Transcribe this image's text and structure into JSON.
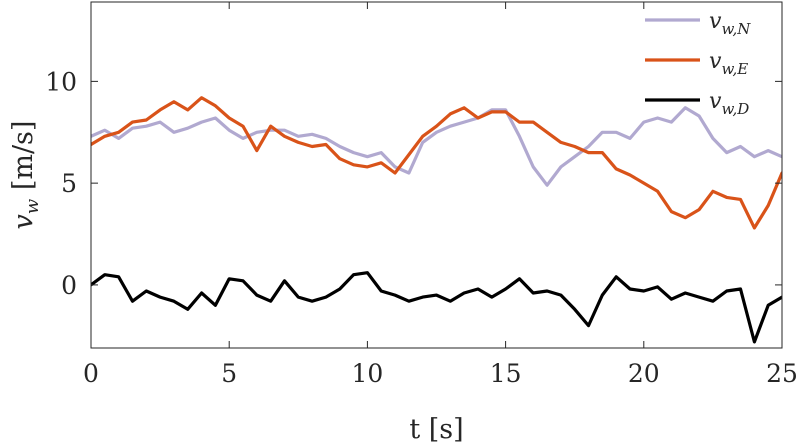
{
  "chart_data": {
    "type": "line",
    "xlabel": "t [s]",
    "ylabel_main": "v",
    "ylabel_sub": "w",
    "ylabel_unit": " [m/s]",
    "xlim": [
      0,
      25
    ],
    "ylim": [
      -3.1,
      13.9
    ],
    "xticks": [
      0,
      5,
      10,
      15,
      20,
      25
    ],
    "yticks": [
      0,
      5,
      10
    ],
    "grid": false,
    "legend_position": "top-right",
    "series": [
      {
        "name": "v_{w,N}",
        "name_main": "v",
        "name_sub": "w,N",
        "color": "#b1a9d0",
        "x": [
          0,
          0.5,
          1,
          1.5,
          2,
          2.5,
          3,
          3.5,
          4,
          4.5,
          5,
          5.5,
          6,
          6.5,
          7,
          7.5,
          8,
          8.5,
          9,
          9.5,
          10,
          10.5,
          11,
          11.5,
          12,
          12.5,
          13,
          13.5,
          14,
          14.5,
          15,
          15.5,
          16,
          16.5,
          17,
          17.5,
          18,
          18.5,
          19,
          19.5,
          20,
          20.5,
          21,
          21.5,
          22,
          22.5,
          23,
          23.5,
          24,
          24.5,
          25
        ],
        "y": [
          7.3,
          7.6,
          7.2,
          7.7,
          7.8,
          8.0,
          7.5,
          7.7,
          8.0,
          8.2,
          7.6,
          7.2,
          7.5,
          7.6,
          7.6,
          7.3,
          7.4,
          7.2,
          6.8,
          6.5,
          6.3,
          6.5,
          5.8,
          5.5,
          7.0,
          7.5,
          7.8,
          8.0,
          8.2,
          8.6,
          8.6,
          7.3,
          5.8,
          4.9,
          5.8,
          6.3,
          6.8,
          7.5,
          7.5,
          7.2,
          8.0,
          8.2,
          8.0,
          8.7,
          8.3,
          7.2,
          6.5,
          6.8,
          6.3,
          6.6,
          6.3
        ]
      },
      {
        "name": "v_{w,E}",
        "name_main": "v",
        "name_sub": "w,E",
        "color": "#d95319",
        "x": [
          0,
          0.5,
          1,
          1.5,
          2,
          2.5,
          3,
          3.5,
          4,
          4.5,
          5,
          5.5,
          6,
          6.5,
          7,
          7.5,
          8,
          8.5,
          9,
          9.5,
          10,
          10.5,
          11,
          11.5,
          12,
          12.5,
          13,
          13.5,
          14,
          14.5,
          15,
          15.5,
          16,
          16.5,
          17,
          17.5,
          18,
          18.5,
          19,
          19.5,
          20,
          20.5,
          21,
          21.5,
          22,
          22.5,
          23,
          23.5,
          24,
          24.5,
          25
        ],
        "y": [
          6.9,
          7.3,
          7.5,
          8.0,
          8.1,
          8.6,
          9.0,
          8.6,
          9.2,
          8.8,
          8.2,
          7.8,
          6.6,
          7.8,
          7.3,
          7.0,
          6.8,
          6.9,
          6.2,
          5.9,
          5.8,
          6.0,
          5.5,
          6.4,
          7.3,
          7.8,
          8.4,
          8.7,
          8.2,
          8.5,
          8.5,
          8.0,
          8.0,
          7.5,
          7.0,
          6.8,
          6.5,
          6.5,
          5.7,
          5.4,
          5.0,
          4.6,
          3.6,
          3.3,
          3.7,
          4.6,
          4.3,
          4.2,
          2.8,
          3.9,
          5.5
        ]
      },
      {
        "name": "v_{w,D}",
        "name_main": "v",
        "name_sub": "w,D",
        "color": "#000000",
        "x": [
          0,
          0.5,
          1,
          1.5,
          2,
          2.5,
          3,
          3.5,
          4,
          4.5,
          5,
          5.5,
          6,
          6.5,
          7,
          7.5,
          8,
          8.5,
          9,
          9.5,
          10,
          10.5,
          11,
          11.5,
          12,
          12.5,
          13,
          13.5,
          14,
          14.5,
          15,
          15.5,
          16,
          16.5,
          17,
          17.5,
          18,
          18.5,
          19,
          19.5,
          20,
          20.5,
          21,
          21.5,
          22,
          22.5,
          23,
          23.5,
          24,
          24.5,
          25
        ],
        "y": [
          0.0,
          0.5,
          0.4,
          -0.8,
          -0.3,
          -0.6,
          -0.8,
          -1.2,
          -0.4,
          -1.0,
          0.3,
          0.2,
          -0.5,
          -0.8,
          0.2,
          -0.6,
          -0.8,
          -0.6,
          -0.2,
          0.5,
          0.6,
          -0.3,
          -0.5,
          -0.8,
          -0.6,
          -0.5,
          -0.8,
          -0.4,
          -0.2,
          -0.6,
          -0.2,
          0.3,
          -0.4,
          -0.3,
          -0.5,
          -1.2,
          -2.0,
          -0.5,
          0.4,
          -0.2,
          -0.3,
          -0.1,
          -0.7,
          -0.4,
          -0.6,
          -0.8,
          -0.3,
          -0.2,
          -2.8,
          -1.0,
          -0.6
        ]
      }
    ]
  }
}
